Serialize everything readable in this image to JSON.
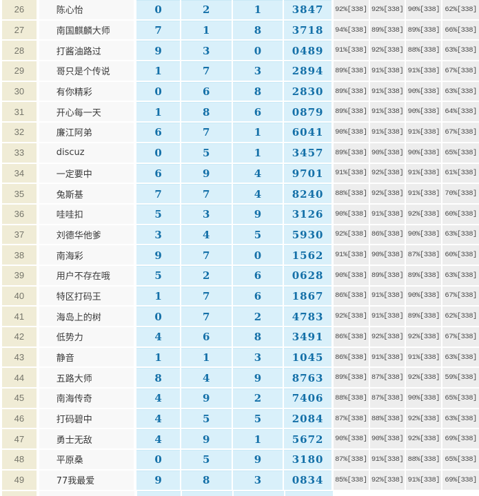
{
  "colors": {
    "rank_bg": "#f0ecd6",
    "rank_text": "#75756a",
    "name_bg": "#f8f8f8",
    "name_text": "#3a3a3a",
    "digit_bg": "#d9f0fa",
    "digit_text": "#1470a8",
    "percent_bg": "#ededed",
    "percent_text": "#4a4a4a",
    "separator": "#ffffff"
  },
  "table": {
    "rows": [
      {
        "rank": "26",
        "name": "陈心怡",
        "digits": [
          "0",
          "2",
          "1"
        ],
        "number": "3847",
        "percents": [
          "92%[338]",
          "92%[338]",
          "90%[338]",
          "62%[338]"
        ]
      },
      {
        "rank": "27",
        "name": "南国麒麟大师",
        "digits": [
          "7",
          "1",
          "8"
        ],
        "number": "3718",
        "percents": [
          "94%[338]",
          "89%[338]",
          "89%[338]",
          "66%[338]"
        ]
      },
      {
        "rank": "28",
        "name": "打酱油路过",
        "digits": [
          "9",
          "3",
          "0"
        ],
        "number": "0489",
        "percents": [
          "91%[338]",
          "92%[338]",
          "88%[338]",
          "63%[338]"
        ]
      },
      {
        "rank": "29",
        "name": "哥只是个传说",
        "digits": [
          "1",
          "7",
          "3"
        ],
        "number": "2894",
        "percents": [
          "89%[338]",
          "91%[338]",
          "91%[338]",
          "67%[338]"
        ]
      },
      {
        "rank": "30",
        "name": "有你精彩",
        "digits": [
          "0",
          "6",
          "8"
        ],
        "number": "2830",
        "percents": [
          "89%[338]",
          "91%[338]",
          "90%[338]",
          "63%[338]"
        ]
      },
      {
        "rank": "31",
        "name": "开心每一天",
        "digits": [
          "1",
          "8",
          "6"
        ],
        "number": "0879",
        "percents": [
          "89%[338]",
          "91%[338]",
          "90%[338]",
          "64%[338]"
        ]
      },
      {
        "rank": "32",
        "name": "廉江阿弟",
        "digits": [
          "6",
          "7",
          "1"
        ],
        "number": "6041",
        "percents": [
          "90%[338]",
          "91%[338]",
          "91%[338]",
          "67%[338]"
        ]
      },
      {
        "rank": "33",
        "name": "discuz",
        "digits": [
          "0",
          "5",
          "1"
        ],
        "number": "3457",
        "percents": [
          "89%[338]",
          "90%[338]",
          "90%[338]",
          "65%[338]"
        ]
      },
      {
        "rank": "34",
        "name": "一定要中",
        "digits": [
          "6",
          "9",
          "4"
        ],
        "number": "9701",
        "percents": [
          "91%[338]",
          "92%[338]",
          "91%[338]",
          "61%[338]"
        ]
      },
      {
        "rank": "35",
        "name": "兔斯基",
        "digits": [
          "7",
          "7",
          "4"
        ],
        "number": "8240",
        "percents": [
          "88%[338]",
          "92%[338]",
          "91%[338]",
          "70%[338]"
        ]
      },
      {
        "rank": "36",
        "name": "哇哇扣",
        "digits": [
          "5",
          "3",
          "9"
        ],
        "number": "3126",
        "percents": [
          "90%[338]",
          "91%[338]",
          "92%[338]",
          "60%[338]"
        ]
      },
      {
        "rank": "37",
        "name": "刘德华他爹",
        "digits": [
          "3",
          "4",
          "5"
        ],
        "number": "5930",
        "percents": [
          "92%[338]",
          "86%[338]",
          "90%[338]",
          "63%[338]"
        ]
      },
      {
        "rank": "38",
        "name": "南海彩",
        "digits": [
          "9",
          "7",
          "0"
        ],
        "number": "1562",
        "percents": [
          "91%[338]",
          "90%[338]",
          "87%[338]",
          "60%[338]"
        ]
      },
      {
        "rank": "39",
        "name": "用户不存在哦",
        "digits": [
          "5",
          "2",
          "6"
        ],
        "number": "0628",
        "percents": [
          "90%[338]",
          "89%[338]",
          "89%[338]",
          "63%[338]"
        ]
      },
      {
        "rank": "40",
        "name": "特区打码王",
        "digits": [
          "1",
          "7",
          "6"
        ],
        "number": "1867",
        "percents": [
          "86%[338]",
          "91%[338]",
          "90%[338]",
          "67%[338]"
        ]
      },
      {
        "rank": "41",
        "name": "海岛上的树",
        "digits": [
          "0",
          "7",
          "2"
        ],
        "number": "4783",
        "percents": [
          "92%[338]",
          "91%[338]",
          "89%[338]",
          "62%[338]"
        ]
      },
      {
        "rank": "42",
        "name": "低势力",
        "digits": [
          "4",
          "6",
          "8"
        ],
        "number": "3491",
        "percents": [
          "86%[338]",
          "92%[338]",
          "92%[338]",
          "67%[338]"
        ]
      },
      {
        "rank": "43",
        "name": "静音",
        "digits": [
          "1",
          "1",
          "3"
        ],
        "number": "1045",
        "percents": [
          "86%[338]",
          "91%[338]",
          "91%[338]",
          "63%[338]"
        ]
      },
      {
        "rank": "44",
        "name": "五路大师",
        "digits": [
          "8",
          "4",
          "9"
        ],
        "number": "8763",
        "percents": [
          "89%[338]",
          "87%[338]",
          "92%[338]",
          "59%[338]"
        ]
      },
      {
        "rank": "45",
        "name": "南海传奇",
        "digits": [
          "4",
          "9",
          "2"
        ],
        "number": "7406",
        "percents": [
          "88%[338]",
          "87%[338]",
          "90%[338]",
          "65%[338]"
        ]
      },
      {
        "rank": "46",
        "name": "打码碧中",
        "digits": [
          "4",
          "5",
          "5"
        ],
        "number": "2084",
        "percents": [
          "87%[338]",
          "88%[338]",
          "92%[338]",
          "63%[338]"
        ]
      },
      {
        "rank": "47",
        "name": "勇士无敌",
        "digits": [
          "4",
          "9",
          "1"
        ],
        "number": "5672",
        "percents": [
          "90%[338]",
          "90%[338]",
          "92%[338]",
          "69%[338]"
        ]
      },
      {
        "rank": "48",
        "name": "平原桑",
        "digits": [
          "0",
          "5",
          "9"
        ],
        "number": "3180",
        "percents": [
          "87%[338]",
          "91%[338]",
          "88%[338]",
          "65%[338]"
        ]
      },
      {
        "rank": "49",
        "name": "77我最爱",
        "digits": [
          "9",
          "8",
          "3"
        ],
        "number": "0834",
        "percents": [
          "85%[338]",
          "92%[338]",
          "91%[338]",
          "69%[338]"
        ]
      }
    ]
  }
}
